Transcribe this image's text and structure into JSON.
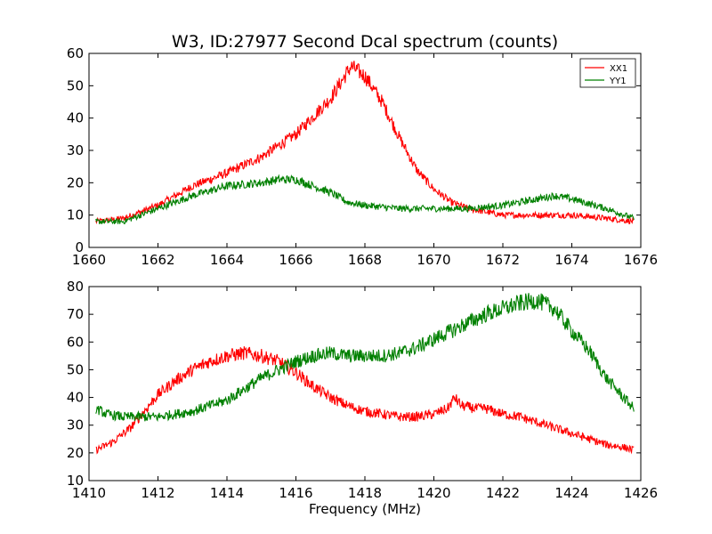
{
  "figure": {
    "title": "W3, ID:27977 Second Dcal spectrum (counts)",
    "xlabel": "Frequency (MHz)"
  },
  "colors": {
    "XX1": "#ff0000",
    "YY1": "#008000",
    "axes": "#000000",
    "background": "#ffffff"
  },
  "chart_data": [
    {
      "type": "line",
      "xlim": [
        1660,
        1676
      ],
      "ylim": [
        0,
        60
      ],
      "xticks": [
        "1660",
        "1662",
        "1664",
        "1666",
        "1668",
        "1670",
        "1672",
        "1674",
        "1676"
      ],
      "yticks": [
        "0",
        "10",
        "20",
        "30",
        "40",
        "50",
        "60"
      ],
      "grid": false,
      "legend": {
        "placement": "top-right",
        "entries": [
          "XX1",
          "YY1"
        ]
      },
      "series": [
        {
          "name": "XX1",
          "color": "#ff0000",
          "x": [
            1660.2,
            1661,
            1662,
            1663,
            1664,
            1665,
            1666,
            1667,
            1667.6,
            1668,
            1668.5,
            1669,
            1669.5,
            1670,
            1670.5,
            1671,
            1671.5,
            1672,
            1673,
            1674,
            1675,
            1675.8
          ],
          "y": [
            8,
            9,
            13,
            19,
            23,
            28,
            35,
            46,
            56,
            53,
            45,
            34,
            24,
            18,
            14,
            12,
            11,
            10,
            10,
            10,
            9,
            8
          ]
        },
        {
          "name": "YY1",
          "color": "#008000",
          "x": [
            1660.2,
            1661,
            1662,
            1663,
            1664,
            1665,
            1665.5,
            1666,
            1666.5,
            1667,
            1667.5,
            1668,
            1669,
            1670,
            1671,
            1672,
            1673,
            1673.5,
            1674,
            1675,
            1675.8
          ],
          "y": [
            8,
            8,
            12,
            16,
            19,
            20,
            21,
            21,
            19,
            17,
            14,
            13,
            12,
            12,
            12,
            13,
            15,
            16,
            15,
            12,
            9
          ]
        }
      ]
    },
    {
      "type": "line",
      "xlim": [
        1410,
        1426
      ],
      "ylim": [
        10,
        80
      ],
      "xticks": [
        "1410",
        "1412",
        "1414",
        "1416",
        "1418",
        "1420",
        "1422",
        "1424",
        "1426"
      ],
      "yticks": [
        "10",
        "20",
        "30",
        "40",
        "50",
        "60",
        "70",
        "80"
      ],
      "xlabel": "Frequency (MHz)",
      "grid": false,
      "series": [
        {
          "name": "XX1",
          "color": "#ff0000",
          "x": [
            1410.2,
            1410.7,
            1411.2,
            1411.6,
            1412,
            1412.5,
            1413,
            1413.5,
            1414,
            1414.5,
            1415,
            1415.5,
            1416,
            1416.5,
            1417,
            1417.5,
            1418,
            1418.5,
            1419,
            1419.5,
            1420,
            1420.4,
            1420.6,
            1420.8,
            1421.2,
            1421.5,
            1422,
            1422.5,
            1423,
            1423.5,
            1424,
            1424.5,
            1425,
            1425.5,
            1425.8
          ],
          "y": [
            21,
            24,
            29,
            35,
            41,
            46,
            50,
            53,
            55,
            56,
            55,
            53,
            49,
            44,
            40,
            37,
            35,
            34,
            33,
            33,
            34,
            36,
            40,
            37,
            36,
            36,
            34,
            33,
            31,
            29,
            27,
            25,
            23,
            22,
            21
          ]
        },
        {
          "name": "YY1",
          "color": "#008000",
          "x": [
            1410.2,
            1410.5,
            1411,
            1411.5,
            1412,
            1412.5,
            1413,
            1413.5,
            1414,
            1414.5,
            1415,
            1415.5,
            1416,
            1416.5,
            1417,
            1417.5,
            1418,
            1418.5,
            1419,
            1419.5,
            1420,
            1420.5,
            1421,
            1421.5,
            1422,
            1422.5,
            1423,
            1423.5,
            1424,
            1424.5,
            1425,
            1425.5,
            1425.8
          ],
          "y": [
            36,
            34,
            33,
            33,
            33,
            34,
            35,
            37,
            39,
            43,
            47,
            50,
            53,
            55,
            56,
            55,
            55,
            55,
            56,
            58,
            61,
            64,
            67,
            70,
            72,
            74,
            75,
            72,
            64,
            57,
            47,
            40,
            36
          ]
        }
      ]
    }
  ]
}
